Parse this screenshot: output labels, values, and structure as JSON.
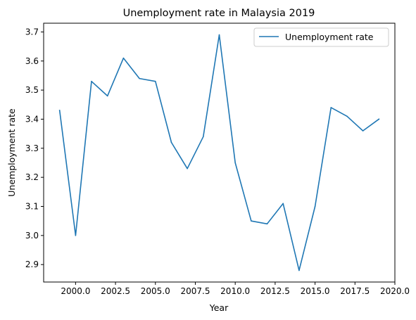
{
  "chart_data": {
    "type": "line",
    "title": "Unemployment rate in Malaysia 2019",
    "xlabel": "Year",
    "ylabel": "Unemployment rate",
    "xlim": [
      1998.0,
      2020.0
    ],
    "ylim": [
      2.84,
      3.73
    ],
    "xticks": [
      2000.0,
      2002.5,
      2005.0,
      2007.5,
      2010.0,
      2012.5,
      2015.0,
      2017.5,
      2020.0
    ],
    "xtick_labels": [
      "2000.0",
      "2002.5",
      "2005.0",
      "2007.5",
      "2010.0",
      "2012.5",
      "2015.0",
      "2017.5",
      "2020.0"
    ],
    "yticks": [
      2.9,
      3.0,
      3.1,
      3.2,
      3.3,
      3.4,
      3.5,
      3.6,
      3.7
    ],
    "ytick_labels": [
      "2.9",
      "3.0",
      "3.1",
      "3.2",
      "3.3",
      "3.4",
      "3.5",
      "3.6",
      "3.7"
    ],
    "grid": false,
    "legend_position": "top-right",
    "series": [
      {
        "name": "Unemployment rate",
        "color": "#1f77b4",
        "x": [
          1999,
          2000,
          2001,
          2002,
          2003,
          2004,
          2005,
          2006,
          2007,
          2008,
          2009,
          2010,
          2011,
          2012,
          2013,
          2014,
          2015,
          2016,
          2017,
          2018,
          2019
        ],
        "y": [
          3.43,
          3.0,
          3.53,
          3.48,
          3.61,
          3.54,
          3.53,
          3.32,
          3.23,
          3.34,
          3.69,
          3.25,
          3.05,
          3.04,
          3.11,
          2.88,
          3.1,
          3.44,
          3.41,
          3.36,
          3.4
        ]
      }
    ]
  }
}
